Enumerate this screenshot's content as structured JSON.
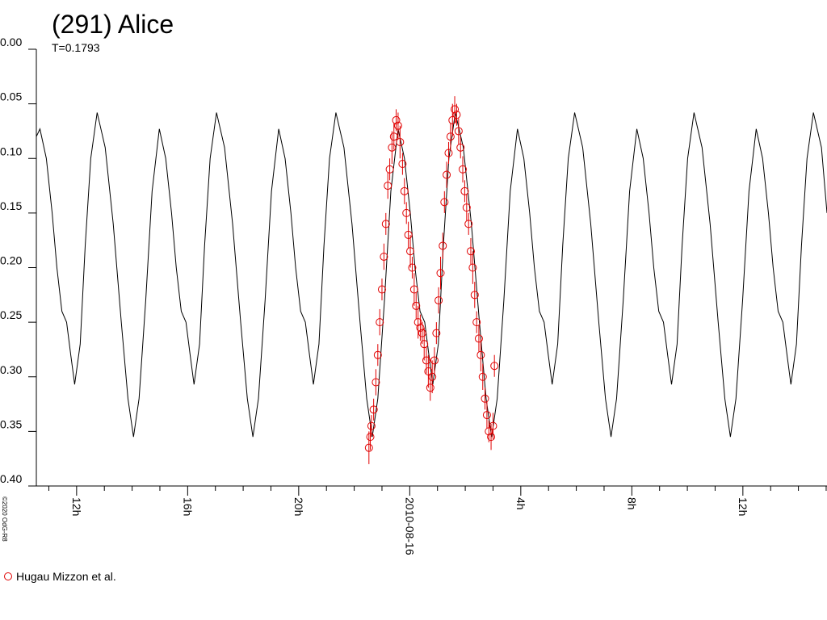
{
  "chart_data": {
    "type": "line",
    "title": "(291) Alice",
    "subtitle": "T=0.1793",
    "credit": "©2020 OdG-R8",
    "invert_y": true,
    "ylim": [
      0,
      0.4
    ],
    "yticks": [
      {
        "value": 0,
        "label": "0.00"
      },
      0.05,
      {
        "value": 0.1,
        "label": "0.10"
      },
      0.15,
      {
        "value": 0.2,
        "label": "0.20"
      },
      0.25,
      {
        "value": 0.3,
        "label": "0.30"
      },
      0.35,
      {
        "value": 0.4,
        "label": "0.40"
      }
    ],
    "xlim": [
      -13.45,
      15.03
    ],
    "xticks": [
      {
        "value": -12,
        "label": "12h"
      },
      {
        "value": -8,
        "label": "16h"
      },
      {
        "value": -4,
        "label": "20h"
      },
      {
        "value": 0,
        "label": "2010-08-16"
      },
      {
        "value": 4,
        "label": "4h"
      },
      {
        "value": 8,
        "label": "8h"
      },
      {
        "value": 12,
        "label": "12h"
      }
    ],
    "xminorticks": [
      -13,
      -11,
      -10,
      -9,
      -7,
      -6,
      -5,
      -3,
      -2,
      -1,
      1,
      2,
      3,
      5,
      6,
      7,
      9,
      10,
      11,
      13,
      14,
      15
    ],
    "series": [
      {
        "type": "line",
        "color": "#000000",
        "x": [
          -13.45,
          -13.32,
          -13.09,
          -12.88,
          -12.71,
          -12.53,
          -12.36,
          -12.21,
          -12.07,
          -11.87,
          -11.69,
          -11.49,
          -11.26,
          -10.97,
          -10.68,
          -10.39,
          -10.15,
          -9.95,
          -9.75,
          -9.51,
          -9.28,
          -9.02,
          -8.79,
          -8.58,
          -8.41,
          -8.23,
          -8.06,
          -7.91,
          -7.77,
          -7.57,
          -7.39,
          -7.19,
          -6.96,
          -6.67,
          -6.38,
          -6.09,
          -5.85,
          -5.65,
          -5.45,
          -5.21,
          -4.98,
          -4.72,
          -4.49,
          -4.28,
          -4.11,
          -3.93,
          -3.76,
          -3.61,
          -3.47,
          -3.27,
          -3.09,
          -2.89,
          -2.66,
          -2.37,
          -2.08,
          -1.79,
          -1.55,
          -1.35,
          -1.15,
          -0.91,
          -0.68,
          -0.42,
          -0.19,
          0.02,
          0.19,
          0.37,
          0.54,
          0.69,
          0.83,
          1.03,
          1.21,
          1.41,
          1.64,
          1.93,
          2.22,
          2.51,
          2.75,
          2.95,
          3.15,
          3.39,
          3.62,
          3.88,
          4.11,
          4.32,
          4.49,
          4.67,
          4.84,
          4.99,
          5.13,
          5.33,
          5.51,
          5.71,
          5.94,
          6.23,
          6.52,
          6.81,
          7.05,
          7.25,
          7.45,
          7.69,
          7.92,
          8.18,
          8.41,
          8.62,
          8.79,
          8.97,
          9.14,
          9.29,
          9.43,
          9.63,
          9.81,
          10.01,
          10.24,
          10.53,
          10.82,
          11.11,
          11.35,
          11.55,
          11.75,
          11.99,
          12.22,
          12.48,
          12.71,
          12.92,
          13.09,
          13.27,
          13.44,
          13.59,
          13.73,
          13.93,
          14.11,
          14.31,
          14.54,
          14.83,
          15.03
        ],
        "values": [
          0.08,
          0.073,
          0.1,
          0.15,
          0.2,
          0.24,
          0.25,
          0.28,
          0.307,
          0.27,
          0.18,
          0.1,
          0.058,
          0.09,
          0.16,
          0.25,
          0.32,
          0.355,
          0.32,
          0.23,
          0.13,
          0.073,
          0.1,
          0.15,
          0.2,
          0.24,
          0.25,
          0.28,
          0.307,
          0.27,
          0.18,
          0.1,
          0.058,
          0.09,
          0.16,
          0.25,
          0.32,
          0.355,
          0.32,
          0.23,
          0.13,
          0.073,
          0.1,
          0.15,
          0.2,
          0.24,
          0.25,
          0.28,
          0.307,
          0.27,
          0.18,
          0.1,
          0.058,
          0.09,
          0.16,
          0.25,
          0.32,
          0.355,
          0.32,
          0.23,
          0.13,
          0.073,
          0.1,
          0.15,
          0.2,
          0.24,
          0.25,
          0.28,
          0.307,
          0.27,
          0.18,
          0.1,
          0.058,
          0.09,
          0.16,
          0.25,
          0.32,
          0.355,
          0.32,
          0.23,
          0.13,
          0.073,
          0.1,
          0.15,
          0.2,
          0.24,
          0.25,
          0.28,
          0.307,
          0.27,
          0.18,
          0.1,
          0.058,
          0.09,
          0.16,
          0.25,
          0.32,
          0.355,
          0.32,
          0.23,
          0.13,
          0.073,
          0.1,
          0.15,
          0.2,
          0.24,
          0.25,
          0.28,
          0.307,
          0.27,
          0.18,
          0.1,
          0.058,
          0.09,
          0.16,
          0.25,
          0.32,
          0.355,
          0.32,
          0.23,
          0.13,
          0.073,
          0.1,
          0.15,
          0.2,
          0.24,
          0.25,
          0.28,
          0.307,
          0.27,
          0.18,
          0.1,
          0.058,
          0.09,
          0.15
        ]
      },
      {
        "type": "scatter",
        "name": "Hugau Mizzon et al.",
        "color": "#e00000",
        "x": [
          -1.47,
          -1.42,
          -1.38,
          -1.3,
          -1.22,
          -1.15,
          -1.08,
          -1.0,
          -0.93,
          -0.86,
          -0.79,
          -0.72,
          -0.64,
          -0.57,
          -0.49,
          -0.42,
          -0.35,
          -0.26,
          -0.19,
          -0.12,
          -0.05,
          0.02,
          0.09,
          0.16,
          0.23,
          0.3,
          0.38,
          0.45,
          0.52,
          0.6,
          0.67,
          0.74,
          0.81,
          0.89,
          0.96,
          1.04,
          1.11,
          1.19,
          1.25,
          1.33,
          1.4,
          1.47,
          1.54,
          1.62,
          1.69,
          1.76,
          1.83,
          1.91,
          1.98,
          2.05,
          2.12,
          2.2,
          2.27,
          2.34,
          2.41,
          2.49,
          2.56,
          2.63,
          2.71,
          2.78,
          2.85,
          2.93,
          3.0,
          3.05
        ],
        "values": [
          0.365,
          0.355,
          0.345,
          0.33,
          0.305,
          0.28,
          0.25,
          0.22,
          0.19,
          0.16,
          0.125,
          0.11,
          0.09,
          0.08,
          0.065,
          0.07,
          0.085,
          0.105,
          0.13,
          0.15,
          0.17,
          0.185,
          0.2,
          0.22,
          0.235,
          0.25,
          0.255,
          0.26,
          0.27,
          0.285,
          0.295,
          0.31,
          0.3,
          0.285,
          0.26,
          0.23,
          0.205,
          0.18,
          0.14,
          0.115,
          0.095,
          0.08,
          0.065,
          0.055,
          0.06,
          0.075,
          0.09,
          0.11,
          0.13,
          0.145,
          0.16,
          0.185,
          0.2,
          0.225,
          0.25,
          0.265,
          0.28,
          0.3,
          0.32,
          0.335,
          0.35,
          0.355,
          0.345,
          0.29
        ],
        "errors": [
          0.015,
          0.012,
          0.01,
          0.01,
          0.012,
          0.01,
          0.012,
          0.01,
          0.012,
          0.01,
          0.012,
          0.01,
          0.015,
          0.012,
          0.01,
          0.012,
          0.015,
          0.01,
          0.012,
          0.01,
          0.012,
          0.015,
          0.01,
          0.015,
          0.012,
          0.015,
          0.012,
          0.01,
          0.015,
          0.012,
          0.015,
          0.012,
          0.015,
          0.012,
          0.01,
          0.012,
          0.015,
          0.012,
          0.01,
          0.012,
          0.01,
          0.012,
          0.015,
          0.012,
          0.01,
          0.012,
          0.01,
          0.012,
          0.01,
          0.012,
          0.01,
          0.012,
          0.015,
          0.012,
          0.01,
          0.012,
          0.015,
          0.012,
          0.01,
          0.012,
          0.01,
          0.012,
          0.012,
          0.01
        ]
      }
    ]
  }
}
